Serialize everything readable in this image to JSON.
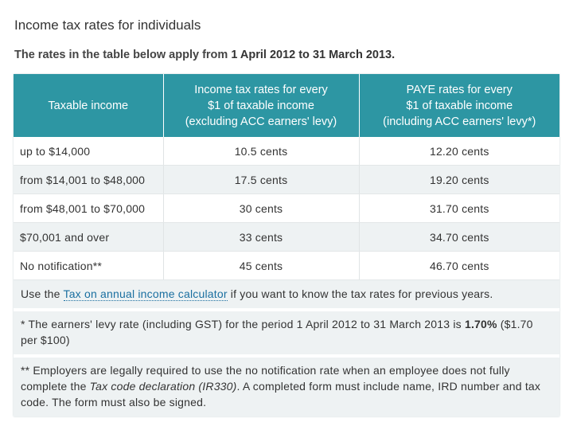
{
  "page": {
    "title": "Income tax rates for individuals",
    "intro_lead": "The rates in the table below apply from ",
    "intro_bold": "1 April 2012 to 31 March 2013."
  },
  "table": {
    "headers": [
      "Taxable income",
      "Income tax rates for every $1 of taxable income (excluding ACC earners' levy)",
      "PAYE rates for every $1 of taxable income (including ACC earners' levy*)"
    ],
    "header_lines": [
      [
        "Taxable income"
      ],
      [
        "Income tax rates for every",
        "$1 of taxable income",
        "(excluding ACC earners' levy)"
      ],
      [
        "PAYE rates for every",
        "$1 of taxable income",
        "(including ACC earners' levy*)"
      ]
    ],
    "rows": [
      [
        "up to $14,000",
        "10.5 cents",
        "12.20 cents"
      ],
      [
        "from $14,001 to $48,000",
        "17.5 cents",
        "19.20 cents"
      ],
      [
        "from $48,001 to $70,000",
        "30 cents",
        "31.70 cents"
      ],
      [
        "$70,001 and over",
        "33 cents",
        "34.70 cents"
      ],
      [
        "No notification**",
        "45 cents",
        "46.70 cents"
      ]
    ],
    "header_color": "#2d96a3",
    "alt_row_color": "#eef2f3"
  },
  "notes": {
    "calculator_pre": "Use the ",
    "calculator_link": "Tax on annual income calculator",
    "calculator_post": " if you want to know the tax rates for previous years.",
    "levy_pre": "* The earners' levy rate (including GST) for the period 1 April 2012 to 31 March 2013 is ",
    "levy_bold": "1.70%",
    "levy_post": " ($1.70 per $100)",
    "employer_pre": "** Employers are legally required to use the no notification rate when an employee does not fully complete the ",
    "employer_em": "Tax code declaration (IR330)",
    "employer_post": ". A completed form must include name, IRD number and tax code. The form must also be signed."
  }
}
